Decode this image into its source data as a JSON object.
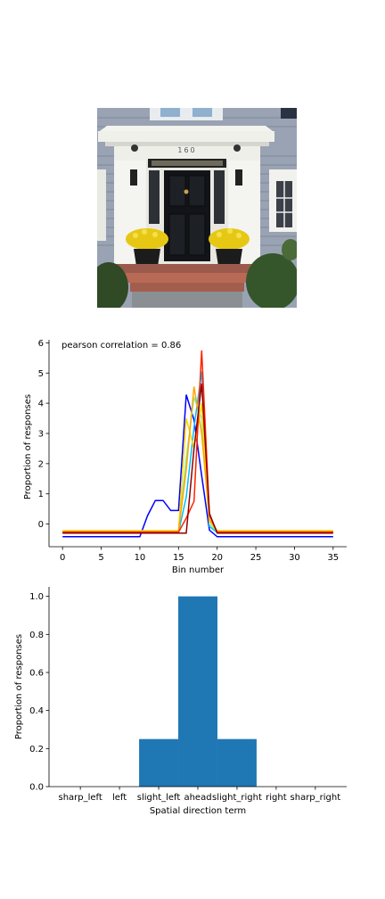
{
  "photo": {
    "house_number": "160"
  },
  "chart_data": [
    {
      "type": "line",
      "annotation": "pearson correlation = 0.86",
      "xlabel": "Bin number",
      "ylabel": "Proportion of responses",
      "xlim": [
        -1.75,
        36.75
      ],
      "ylim": [
        -0.75,
        6.1
      ],
      "xticks": [
        0,
        5,
        10,
        15,
        20,
        25,
        30,
        35
      ],
      "yticks": [
        0,
        1,
        2,
        3,
        4,
        5,
        6
      ],
      "grid": false,
      "series": [
        {
          "color": "#0000ff",
          "x": [
            0,
            1,
            2,
            3,
            4,
            5,
            6,
            7,
            8,
            9,
            10,
            11,
            12,
            13,
            14,
            15,
            16,
            17,
            18,
            19,
            20,
            21,
            22,
            23,
            24,
            25,
            26,
            27,
            28,
            29,
            30,
            31,
            32,
            33,
            34,
            35
          ],
          "y": [
            -0.42,
            -0.42,
            -0.42,
            -0.42,
            -0.42,
            -0.42,
            -0.42,
            -0.42,
            -0.42,
            -0.42,
            -0.42,
            0.28,
            0.78,
            0.78,
            0.45,
            0.45,
            4.28,
            3.45,
            1.6,
            -0.2,
            -0.42,
            -0.42,
            -0.42,
            -0.42,
            -0.42,
            -0.42,
            -0.42,
            -0.42,
            -0.42,
            -0.42,
            -0.42,
            -0.42,
            -0.42,
            -0.42,
            -0.42,
            -0.42
          ]
        },
        {
          "color": "#00bfff",
          "x": [
            0,
            1,
            2,
            3,
            4,
            5,
            6,
            7,
            8,
            9,
            10,
            11,
            12,
            13,
            14,
            15,
            16,
            17,
            18,
            19,
            20,
            21,
            22,
            23,
            24,
            25,
            26,
            27,
            28,
            29,
            30,
            31,
            32,
            33,
            34,
            35
          ],
          "y": [
            -0.28,
            -0.28,
            -0.28,
            -0.28,
            -0.28,
            -0.28,
            -0.28,
            -0.28,
            -0.28,
            -0.28,
            -0.28,
            -0.28,
            -0.28,
            -0.28,
            -0.28,
            -0.28,
            0.9,
            3.2,
            5.05,
            -0.08,
            -0.28,
            -0.28,
            -0.28,
            -0.28,
            -0.28,
            -0.28,
            -0.28,
            -0.28,
            -0.28,
            -0.28,
            -0.28,
            -0.28,
            -0.28,
            -0.28,
            -0.28,
            -0.28
          ]
        },
        {
          "color": "#90ee90",
          "x": [
            0,
            1,
            2,
            3,
            4,
            5,
            6,
            7,
            8,
            9,
            10,
            11,
            12,
            13,
            14,
            15,
            16,
            17,
            18,
            19,
            20,
            21,
            22,
            23,
            24,
            25,
            26,
            27,
            28,
            29,
            30,
            31,
            32,
            33,
            34,
            35
          ],
          "y": [
            -0.25,
            -0.25,
            -0.25,
            -0.25,
            -0.25,
            -0.25,
            -0.25,
            -0.25,
            -0.25,
            -0.25,
            -0.25,
            -0.25,
            -0.25,
            -0.25,
            -0.25,
            -0.25,
            2.2,
            4.2,
            3.5,
            0.0,
            -0.25,
            -0.25,
            -0.25,
            -0.25,
            -0.25,
            -0.25,
            -0.25,
            -0.25,
            -0.25,
            -0.25,
            -0.25,
            -0.25,
            -0.25,
            -0.25,
            -0.25,
            -0.25
          ]
        },
        {
          "color": "#ffd700",
          "x": [
            0,
            1,
            2,
            3,
            4,
            5,
            6,
            7,
            8,
            9,
            10,
            11,
            12,
            13,
            14,
            15,
            16,
            17,
            18,
            19,
            20,
            21,
            22,
            23,
            24,
            25,
            26,
            27,
            28,
            29,
            30,
            31,
            32,
            33,
            34,
            35
          ],
          "y": [
            -0.22,
            -0.22,
            -0.22,
            -0.22,
            -0.22,
            -0.22,
            -0.22,
            -0.22,
            -0.22,
            -0.22,
            -0.22,
            -0.22,
            -0.22,
            -0.22,
            -0.22,
            -0.22,
            3.5,
            2.5,
            4.0,
            0.1,
            -0.22,
            -0.22,
            -0.22,
            -0.22,
            -0.22,
            -0.22,
            -0.22,
            -0.22,
            -0.22,
            -0.22,
            -0.22,
            -0.22,
            -0.22,
            -0.22,
            -0.22,
            -0.22
          ]
        },
        {
          "color": "#ffa500",
          "x": [
            0,
            1,
            2,
            3,
            4,
            5,
            6,
            7,
            8,
            9,
            10,
            11,
            12,
            13,
            14,
            15,
            16,
            17,
            18,
            19,
            20,
            21,
            22,
            23,
            24,
            25,
            26,
            27,
            28,
            29,
            30,
            31,
            32,
            33,
            34,
            35
          ],
          "y": [
            -0.24,
            -0.24,
            -0.24,
            -0.24,
            -0.24,
            -0.24,
            -0.24,
            -0.24,
            -0.24,
            -0.24,
            -0.24,
            -0.24,
            -0.24,
            -0.24,
            -0.24,
            -0.24,
            1.8,
            4.55,
            3.0,
            0.15,
            -0.24,
            -0.24,
            -0.24,
            -0.24,
            -0.24,
            -0.24,
            -0.24,
            -0.24,
            -0.24,
            -0.24,
            -0.24,
            -0.24,
            -0.24,
            -0.24,
            -0.24,
            -0.24
          ]
        },
        {
          "color": "#ff2200",
          "x": [
            0,
            1,
            2,
            3,
            4,
            5,
            6,
            7,
            8,
            9,
            10,
            11,
            12,
            13,
            14,
            15,
            16,
            17,
            18,
            19,
            20,
            21,
            22,
            23,
            24,
            25,
            26,
            27,
            28,
            29,
            30,
            31,
            32,
            33,
            34,
            35
          ],
          "y": [
            -0.27,
            -0.27,
            -0.27,
            -0.27,
            -0.27,
            -0.27,
            -0.27,
            -0.27,
            -0.27,
            -0.27,
            -0.27,
            -0.27,
            -0.27,
            -0.27,
            -0.27,
            -0.27,
            0.2,
            0.75,
            5.75,
            0.3,
            -0.27,
            -0.27,
            -0.27,
            -0.27,
            -0.27,
            -0.27,
            -0.27,
            -0.27,
            -0.27,
            -0.27,
            -0.27,
            -0.27,
            -0.27,
            -0.27,
            -0.27,
            -0.27
          ]
        },
        {
          "color": "#8b0000",
          "x": [
            0,
            1,
            2,
            3,
            4,
            5,
            6,
            7,
            8,
            9,
            10,
            11,
            12,
            13,
            14,
            15,
            16,
            17,
            18,
            19,
            20,
            21,
            22,
            23,
            24,
            25,
            26,
            27,
            28,
            29,
            30,
            31,
            32,
            33,
            34,
            35
          ],
          "y": [
            -0.3,
            -0.3,
            -0.3,
            -0.3,
            -0.3,
            -0.3,
            -0.3,
            -0.3,
            -0.3,
            -0.3,
            -0.3,
            -0.3,
            -0.3,
            -0.3,
            -0.3,
            -0.3,
            -0.3,
            2.5,
            4.65,
            0.35,
            -0.3,
            -0.3,
            -0.3,
            -0.3,
            -0.3,
            -0.3,
            -0.3,
            -0.3,
            -0.3,
            -0.3,
            -0.3,
            -0.3,
            -0.3,
            -0.3,
            -0.3,
            -0.3
          ]
        }
      ]
    },
    {
      "type": "bar",
      "xlabel": "Spatial direction term",
      "ylabel": "Proportion of responses",
      "categories": [
        "sharp_left",
        "left",
        "slight_left",
        "ahead",
        "slight_right",
        "right",
        "sharp_right"
      ],
      "values": [
        0,
        0,
        0.25,
        1.0,
        0.25,
        0,
        0
      ],
      "ylim": [
        0,
        1.05
      ],
      "yticks": [
        "0.0",
        "0.2",
        "0.4",
        "0.6",
        "0.8",
        "1.0"
      ],
      "bar_color": "#1f77b4",
      "grid": false
    }
  ]
}
